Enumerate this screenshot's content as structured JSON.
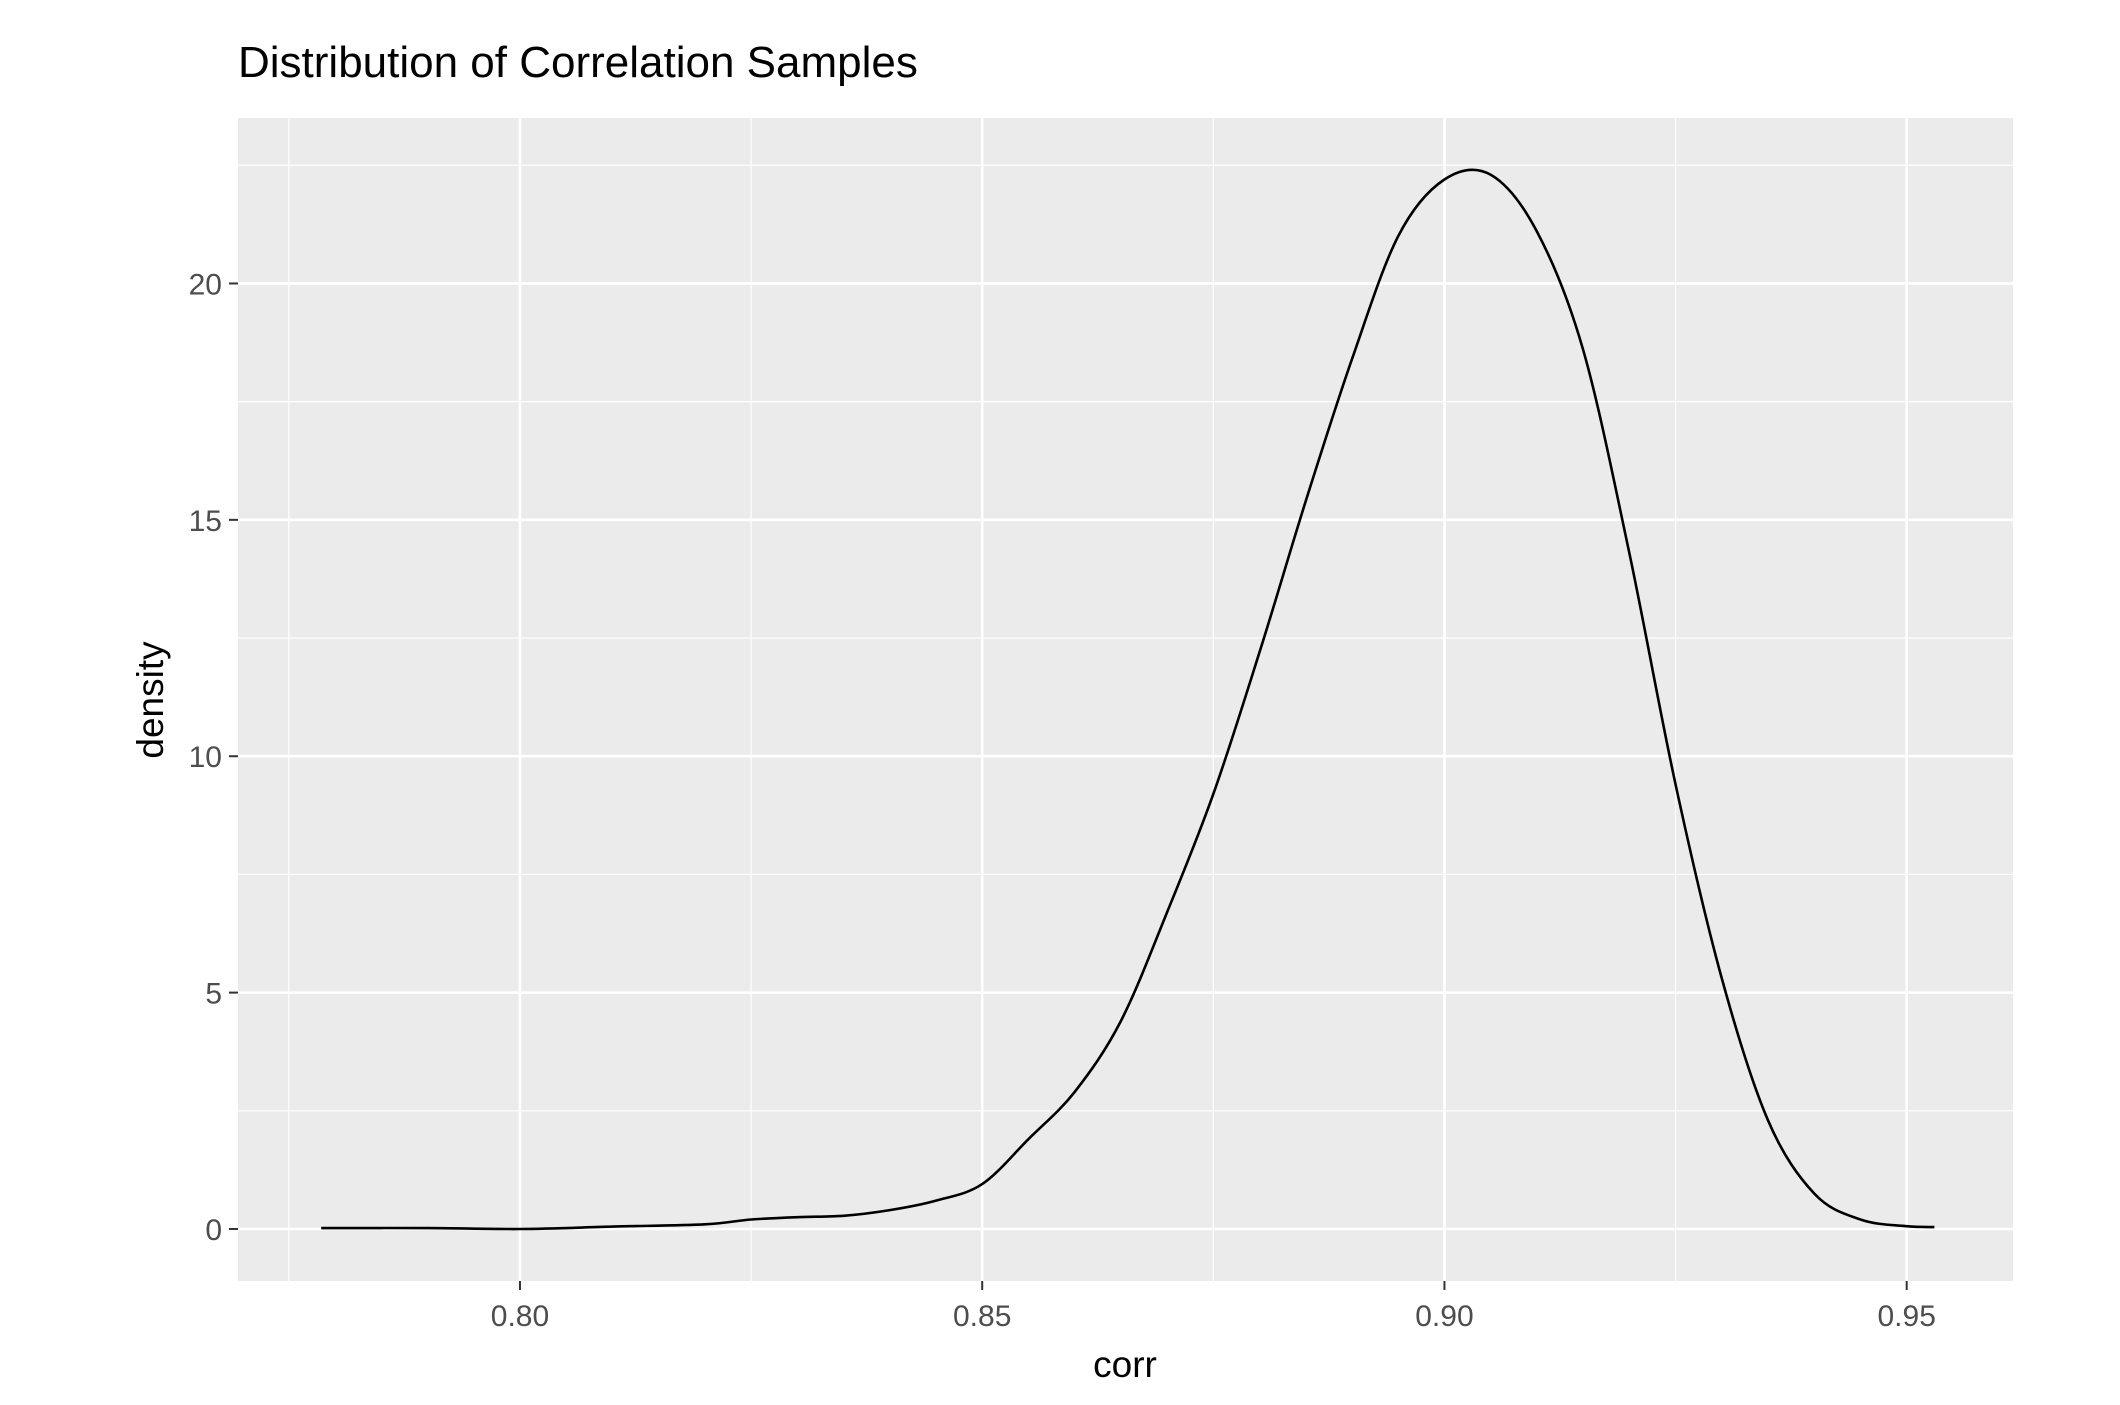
{
  "chart_data": {
    "type": "line",
    "title": "Distribution of Correlation Samples",
    "xlabel": "corr",
    "ylabel": "density",
    "xlim": [
      0.7695,
      0.9615
    ],
    "ylim": [
      -1.1,
      23.5
    ],
    "x_ticks": [
      0.8,
      0.85,
      0.9,
      0.95
    ],
    "x_tick_labels": [
      "0.80",
      "0.85",
      "0.90",
      "0.95"
    ],
    "y_ticks": [
      0,
      5,
      10,
      15,
      20
    ],
    "y_tick_labels": [
      "0",
      "5",
      "10",
      "15",
      "20"
    ],
    "grid": true,
    "background": "#ebebeb",
    "line_color": "#000000",
    "series": [
      {
        "x": [
          0.7785,
          0.79,
          0.8,
          0.81,
          0.82,
          0.825,
          0.83,
          0.835,
          0.84,
          0.845,
          0.85,
          0.855,
          0.86,
          0.865,
          0.87,
          0.875,
          0.88,
          0.885,
          0.89,
          0.895,
          0.9,
          0.905,
          0.91,
          0.915,
          0.92,
          0.925,
          0.93,
          0.935,
          0.94,
          0.945,
          0.95,
          0.953
        ],
        "y": [
          0.02,
          0.02,
          0.0,
          0.05,
          0.1,
          0.2,
          0.25,
          0.28,
          0.4,
          0.6,
          0.95,
          1.9,
          2.9,
          4.4,
          6.7,
          9.2,
          12.2,
          15.4,
          18.4,
          21.0,
          22.2,
          22.3,
          21.1,
          18.6,
          14.3,
          9.4,
          5.3,
          2.3,
          0.75,
          0.2,
          0.06,
          0.04
        ]
      }
    ]
  }
}
